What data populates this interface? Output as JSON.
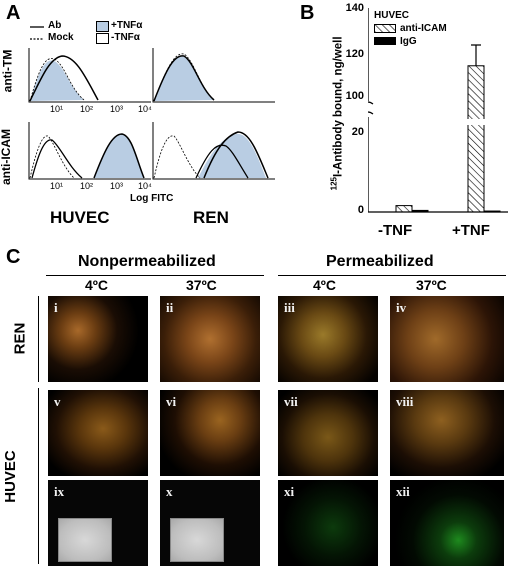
{
  "panel_labels": {
    "a": "A",
    "b": "B",
    "c": "C"
  },
  "panel_a": {
    "legend": {
      "ab": "Ab",
      "mock": "Mock",
      "plus_tnf": "+TNFα",
      "minus_tnf": "-TNFα"
    },
    "row_labels": {
      "tm": "anti-TM",
      "icam": "anti-ICAM"
    },
    "x_ticks": [
      "10¹",
      "10²",
      "10³",
      "10⁴"
    ],
    "x_axis_label": "Log FITC",
    "col_labels": {
      "huvec": "HUVEC",
      "ren": "REN"
    }
  },
  "panel_b": {
    "legend_title": "HUVEC",
    "ylabel": "125I-Antibody bound, ng/well",
    "ylabel_sup": "125",
    "ylabel_rest": "I-Antibody bound, ng/well",
    "y_ticks_top": [
      "140",
      "120",
      "100"
    ],
    "y_ticks_bottom": [
      "20",
      "0"
    ],
    "categories": [
      "-TNF",
      "+TNF"
    ]
  },
  "chart_data": {
    "type": "bar",
    "categories": [
      "-TNF",
      "+TNF"
    ],
    "series": [
      {
        "name": "anti-ICAM",
        "values": [
          2,
          115
        ]
      },
      {
        "name": "IgG",
        "values": [
          0.5,
          0.3
        ]
      }
    ],
    "error": {
      "anti-ICAM": [
        0,
        9
      ]
    },
    "ylabel": "125I-Antibody bound, ng/well",
    "ylim": [
      0,
      140
    ],
    "axis_break": [
      25,
      95
    ]
  },
  "panel_c": {
    "headers": {
      "nonperm": "Nonpermeabilized",
      "perm": "Permeabilized"
    },
    "temps": [
      "4ºC",
      "37ºC",
      "4ºC",
      "37ºC"
    ],
    "row_labels": {
      "ren": "REN",
      "huvec": "HUVEC"
    },
    "cells": [
      [
        "i",
        "ii",
        "iii",
        "iv"
      ],
      [
        "v",
        "vi",
        "vii",
        "viii"
      ],
      [
        "ix",
        "x",
        "xi",
        "xii"
      ]
    ]
  }
}
